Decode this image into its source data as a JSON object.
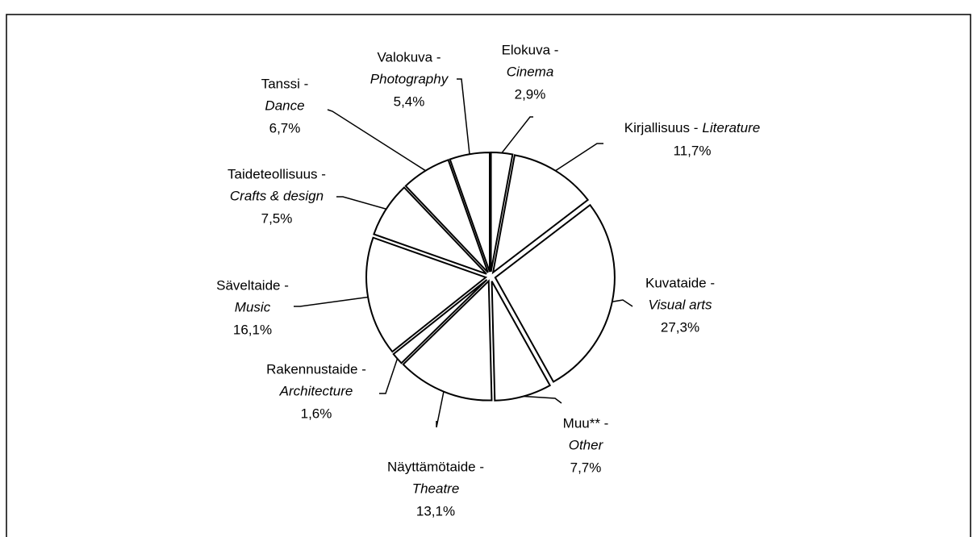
{
  "chart_data": {
    "type": "pie",
    "categories": [
      "Elokuva -",
      "Kirjallisuus -",
      "Kuvataide -",
      "Muu** -",
      "Näyttämötaide -",
      "Rakennustaide -",
      "Säveltaide -",
      "Taideteollisuus -",
      "Tanssi -",
      "Valokuva -"
    ],
    "categories_en": [
      "Cinema",
      "Literature",
      "Visual arts",
      "Other",
      "Theatre",
      "Architecture",
      "Music",
      "Crafts & design",
      "Dance",
      "Photography"
    ],
    "values": [
      2.9,
      11.7,
      27.3,
      7.7,
      13.1,
      1.6,
      16.1,
      7.5,
      6.7,
      5.4
    ],
    "value_labels": [
      "2,9%",
      "11,7%",
      "27,3%",
      "7,7%",
      "13,1%",
      "1,6%",
      "16,1%",
      "7,5%",
      "6,7%",
      "5,4%"
    ],
    "color": "#ffffff"
  }
}
